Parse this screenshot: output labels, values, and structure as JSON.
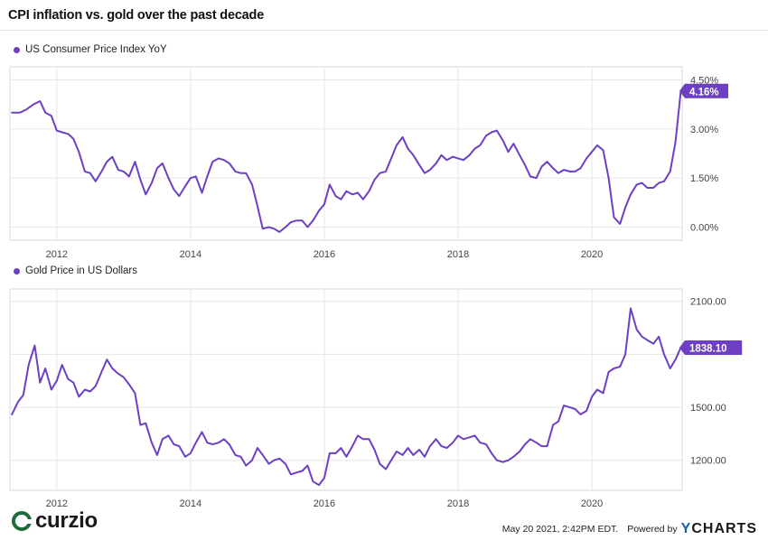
{
  "title": "CPI inflation vs. gold over the past decade",
  "colors": {
    "series": "#6c3fc4",
    "grid": "#e6e6e6",
    "axis_text": "#444444"
  },
  "chart_data": [
    {
      "type": "line",
      "series_name": "US Consumer Price Index YoY",
      "ylim": [
        -0.4,
        4.9
      ],
      "xlim": [
        2011.3,
        2021.35
      ],
      "y_ticks": [
        "4.50%",
        "3.00%",
        "1.50%",
        "0.00%"
      ],
      "y_tick_values": [
        4.5,
        3.0,
        1.5,
        0.0
      ],
      "x_ticks": [
        "2012",
        "2014",
        "2016",
        "2018",
        "2020"
      ],
      "x_tick_values": [
        2012,
        2014,
        2016,
        2018,
        2020
      ],
      "last_value_label": "4.16%",
      "grid": true,
      "points": [
        [
          2011.33,
          3.5
        ],
        [
          2011.45,
          3.5
        ],
        [
          2011.55,
          3.6
        ],
        [
          2011.65,
          3.75
        ],
        [
          2011.75,
          3.85
        ],
        [
          2011.83,
          3.5
        ],
        [
          2011.92,
          3.4
        ],
        [
          2012.0,
          2.95
        ],
        [
          2012.08,
          2.9
        ],
        [
          2012.17,
          2.85
        ],
        [
          2012.25,
          2.7
        ],
        [
          2012.33,
          2.3
        ],
        [
          2012.42,
          1.7
        ],
        [
          2012.5,
          1.65
        ],
        [
          2012.58,
          1.4
        ],
        [
          2012.67,
          1.7
        ],
        [
          2012.75,
          2.0
        ],
        [
          2012.83,
          2.15
        ],
        [
          2012.92,
          1.75
        ],
        [
          2013.0,
          1.7
        ],
        [
          2013.08,
          1.55
        ],
        [
          2013.17,
          2.0
        ],
        [
          2013.25,
          1.45
        ],
        [
          2013.33,
          1.0
        ],
        [
          2013.42,
          1.35
        ],
        [
          2013.5,
          1.8
        ],
        [
          2013.58,
          1.95
        ],
        [
          2013.67,
          1.5
        ],
        [
          2013.75,
          1.15
        ],
        [
          2013.83,
          0.95
        ],
        [
          2013.92,
          1.25
        ],
        [
          2014.0,
          1.5
        ],
        [
          2014.08,
          1.55
        ],
        [
          2014.17,
          1.05
        ],
        [
          2014.25,
          1.55
        ],
        [
          2014.33,
          2.0
        ],
        [
          2014.42,
          2.1
        ],
        [
          2014.5,
          2.05
        ],
        [
          2014.58,
          1.95
        ],
        [
          2014.67,
          1.7
        ],
        [
          2014.75,
          1.65
        ],
        [
          2014.83,
          1.65
        ],
        [
          2014.92,
          1.3
        ],
        [
          2015.0,
          0.65
        ],
        [
          2015.08,
          -0.05
        ],
        [
          2015.17,
          0.0
        ],
        [
          2015.25,
          -0.05
        ],
        [
          2015.33,
          -0.15
        ],
        [
          2015.42,
          0.0
        ],
        [
          2015.5,
          0.15
        ],
        [
          2015.58,
          0.2
        ],
        [
          2015.67,
          0.2
        ],
        [
          2015.75,
          0.0
        ],
        [
          2015.83,
          0.2
        ],
        [
          2015.92,
          0.5
        ],
        [
          2016.0,
          0.7
        ],
        [
          2016.08,
          1.3
        ],
        [
          2016.17,
          0.95
        ],
        [
          2016.25,
          0.85
        ],
        [
          2016.33,
          1.1
        ],
        [
          2016.42,
          1.0
        ],
        [
          2016.5,
          1.05
        ],
        [
          2016.58,
          0.85
        ],
        [
          2016.67,
          1.1
        ],
        [
          2016.75,
          1.45
        ],
        [
          2016.83,
          1.65
        ],
        [
          2016.92,
          1.7
        ],
        [
          2017.0,
          2.1
        ],
        [
          2017.08,
          2.5
        ],
        [
          2017.17,
          2.75
        ],
        [
          2017.25,
          2.4
        ],
        [
          2017.33,
          2.2
        ],
        [
          2017.42,
          1.9
        ],
        [
          2017.5,
          1.65
        ],
        [
          2017.58,
          1.75
        ],
        [
          2017.67,
          1.95
        ],
        [
          2017.75,
          2.2
        ],
        [
          2017.83,
          2.05
        ],
        [
          2017.92,
          2.15
        ],
        [
          2018.0,
          2.1
        ],
        [
          2018.08,
          2.05
        ],
        [
          2018.17,
          2.2
        ],
        [
          2018.25,
          2.4
        ],
        [
          2018.33,
          2.5
        ],
        [
          2018.42,
          2.8
        ],
        [
          2018.5,
          2.9
        ],
        [
          2018.58,
          2.95
        ],
        [
          2018.67,
          2.65
        ],
        [
          2018.75,
          2.3
        ],
        [
          2018.83,
          2.55
        ],
        [
          2018.92,
          2.2
        ],
        [
          2019.0,
          1.9
        ],
        [
          2019.08,
          1.55
        ],
        [
          2019.17,
          1.5
        ],
        [
          2019.25,
          1.85
        ],
        [
          2019.33,
          2.0
        ],
        [
          2019.42,
          1.8
        ],
        [
          2019.5,
          1.65
        ],
        [
          2019.58,
          1.75
        ],
        [
          2019.67,
          1.7
        ],
        [
          2019.75,
          1.7
        ],
        [
          2019.83,
          1.8
        ],
        [
          2019.92,
          2.1
        ],
        [
          2020.0,
          2.3
        ],
        [
          2020.08,
          2.5
        ],
        [
          2020.17,
          2.35
        ],
        [
          2020.25,
          1.5
        ],
        [
          2020.33,
          0.3
        ],
        [
          2020.42,
          0.1
        ],
        [
          2020.5,
          0.6
        ],
        [
          2020.58,
          1.0
        ],
        [
          2020.67,
          1.3
        ],
        [
          2020.75,
          1.35
        ],
        [
          2020.83,
          1.2
        ],
        [
          2020.92,
          1.2
        ],
        [
          2021.0,
          1.35
        ],
        [
          2021.08,
          1.4
        ],
        [
          2021.17,
          1.7
        ],
        [
          2021.25,
          2.6
        ],
        [
          2021.33,
          4.16
        ]
      ]
    },
    {
      "type": "line",
      "series_name": "Gold Price in US Dollars",
      "ylim": [
        1030,
        2170
      ],
      "xlim": [
        2011.3,
        2021.35
      ],
      "y_ticks": [
        "2100.00",
        "1500.00",
        "1200.00"
      ],
      "y_tick_values": [
        2100,
        1500,
        1200
      ],
      "grid_values": [
        1800
      ],
      "x_ticks": [
        "2012",
        "2014",
        "2016",
        "2018",
        "2020"
      ],
      "x_tick_values": [
        2012,
        2014,
        2016,
        2018,
        2020
      ],
      "last_value_label": "1838.10",
      "grid": true,
      "points": [
        [
          2011.33,
          1460
        ],
        [
          2011.42,
          1530
        ],
        [
          2011.5,
          1570
        ],
        [
          2011.58,
          1740
        ],
        [
          2011.67,
          1850
        ],
        [
          2011.75,
          1640
        ],
        [
          2011.83,
          1720
        ],
        [
          2011.92,
          1600
        ],
        [
          2012.0,
          1650
        ],
        [
          2012.08,
          1740
        ],
        [
          2012.17,
          1660
        ],
        [
          2012.25,
          1640
        ],
        [
          2012.33,
          1560
        ],
        [
          2012.42,
          1600
        ],
        [
          2012.5,
          1590
        ],
        [
          2012.58,
          1620
        ],
        [
          2012.67,
          1700
        ],
        [
          2012.75,
          1770
        ],
        [
          2012.83,
          1720
        ],
        [
          2012.92,
          1690
        ],
        [
          2013.0,
          1670
        ],
        [
          2013.08,
          1630
        ],
        [
          2013.17,
          1580
        ],
        [
          2013.25,
          1400
        ],
        [
          2013.33,
          1410
        ],
        [
          2013.42,
          1300
        ],
        [
          2013.5,
          1230
        ],
        [
          2013.58,
          1320
        ],
        [
          2013.67,
          1340
        ],
        [
          2013.75,
          1290
        ],
        [
          2013.83,
          1280
        ],
        [
          2013.92,
          1220
        ],
        [
          2014.0,
          1240
        ],
        [
          2014.08,
          1300
        ],
        [
          2014.17,
          1360
        ],
        [
          2014.25,
          1300
        ],
        [
          2014.33,
          1290
        ],
        [
          2014.42,
          1300
        ],
        [
          2014.5,
          1320
        ],
        [
          2014.58,
          1290
        ],
        [
          2014.67,
          1230
        ],
        [
          2014.75,
          1220
        ],
        [
          2014.83,
          1170
        ],
        [
          2014.92,
          1200
        ],
        [
          2015.0,
          1270
        ],
        [
          2015.08,
          1230
        ],
        [
          2015.17,
          1180
        ],
        [
          2015.25,
          1200
        ],
        [
          2015.33,
          1210
        ],
        [
          2015.42,
          1180
        ],
        [
          2015.5,
          1120
        ],
        [
          2015.58,
          1130
        ],
        [
          2015.67,
          1140
        ],
        [
          2015.75,
          1170
        ],
        [
          2015.83,
          1080
        ],
        [
          2015.92,
          1060
        ],
        [
          2016.0,
          1100
        ],
        [
          2016.08,
          1240
        ],
        [
          2016.17,
          1240
        ],
        [
          2016.25,
          1270
        ],
        [
          2016.33,
          1220
        ],
        [
          2016.42,
          1280
        ],
        [
          2016.5,
          1340
        ],
        [
          2016.58,
          1320
        ],
        [
          2016.67,
          1320
        ],
        [
          2016.75,
          1260
        ],
        [
          2016.83,
          1180
        ],
        [
          2016.92,
          1150
        ],
        [
          2017.0,
          1200
        ],
        [
          2017.08,
          1250
        ],
        [
          2017.17,
          1230
        ],
        [
          2017.25,
          1270
        ],
        [
          2017.33,
          1230
        ],
        [
          2017.42,
          1260
        ],
        [
          2017.5,
          1220
        ],
        [
          2017.58,
          1280
        ],
        [
          2017.67,
          1320
        ],
        [
          2017.75,
          1280
        ],
        [
          2017.83,
          1270
        ],
        [
          2017.92,
          1300
        ],
        [
          2018.0,
          1340
        ],
        [
          2018.08,
          1320
        ],
        [
          2018.17,
          1330
        ],
        [
          2018.25,
          1340
        ],
        [
          2018.33,
          1300
        ],
        [
          2018.42,
          1290
        ],
        [
          2018.5,
          1240
        ],
        [
          2018.58,
          1200
        ],
        [
          2018.67,
          1190
        ],
        [
          2018.75,
          1200
        ],
        [
          2018.83,
          1220
        ],
        [
          2018.92,
          1250
        ],
        [
          2019.0,
          1290
        ],
        [
          2019.08,
          1320
        ],
        [
          2019.17,
          1300
        ],
        [
          2019.25,
          1280
        ],
        [
          2019.33,
          1280
        ],
        [
          2019.42,
          1400
        ],
        [
          2019.5,
          1420
        ],
        [
          2019.58,
          1510
        ],
        [
          2019.67,
          1500
        ],
        [
          2019.75,
          1490
        ],
        [
          2019.83,
          1460
        ],
        [
          2019.92,
          1480
        ],
        [
          2020.0,
          1560
        ],
        [
          2020.08,
          1600
        ],
        [
          2020.17,
          1580
        ],
        [
          2020.25,
          1700
        ],
        [
          2020.33,
          1720
        ],
        [
          2020.42,
          1730
        ],
        [
          2020.5,
          1800
        ],
        [
          2020.58,
          2060
        ],
        [
          2020.67,
          1940
        ],
        [
          2020.75,
          1900
        ],
        [
          2020.83,
          1880
        ],
        [
          2020.92,
          1860
        ],
        [
          2021.0,
          1900
        ],
        [
          2021.08,
          1800
        ],
        [
          2021.17,
          1720
        ],
        [
          2021.25,
          1770
        ],
        [
          2021.33,
          1838
        ]
      ]
    }
  ],
  "footer": {
    "logo_text": "curzio",
    "timestamp": "May 20 2021, 2:42PM EDT.",
    "powered_by": "Powered by",
    "brand_y": "Y",
    "brand_rest": "CHARTS"
  }
}
